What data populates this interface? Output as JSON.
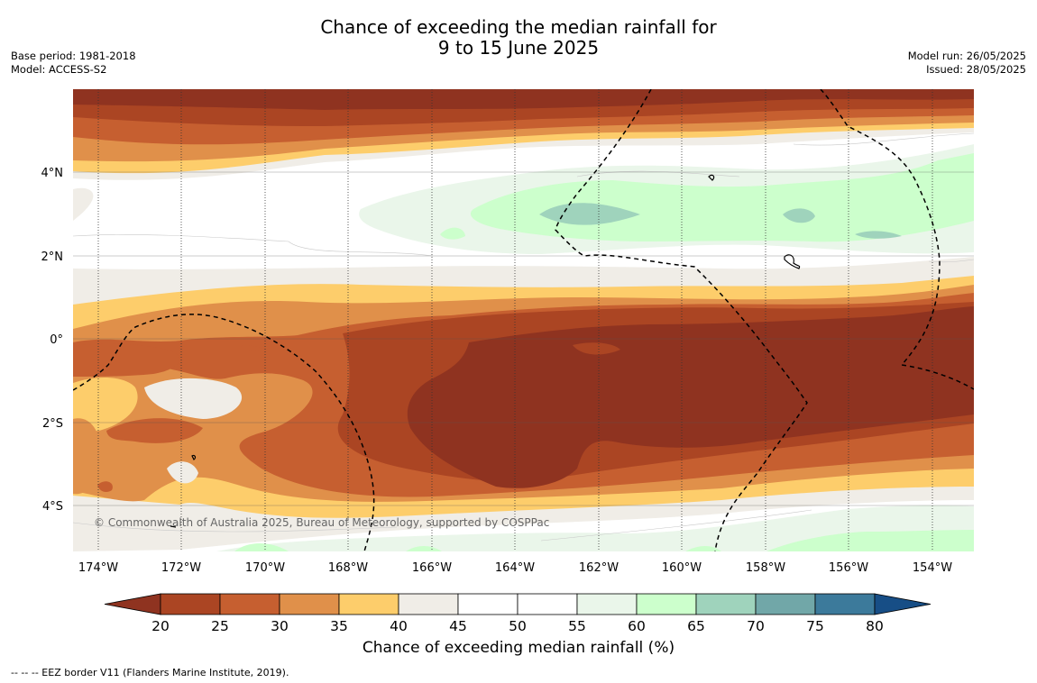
{
  "title": {
    "line1": "Chance of exceeding the median rainfall for",
    "line2": "9 to 15 June 2025"
  },
  "meta_left": {
    "base_period": "Base period: 1981-2018",
    "model": "Model: ACCESS-S2"
  },
  "meta_right": {
    "model_run": "Model run: 26/05/2025",
    "issued": "Issued: 28/05/2025"
  },
  "map": {
    "lat_ticks": [
      "4°N",
      "2°N",
      "0°",
      "2°S",
      "4°S"
    ],
    "lon_ticks": [
      "174°W",
      "172°W",
      "170°W",
      "168°W",
      "166°W",
      "164°W",
      "162°W",
      "160°W",
      "158°W",
      "156°W",
      "154°W"
    ],
    "copyright": "© Commonwealth of Australia 2025, Bureau of Meteorology, supported by COSPPac"
  },
  "colorbar": {
    "ticks": [
      "20",
      "25",
      "30",
      "35",
      "40",
      "45",
      "50",
      "55",
      "60",
      "65",
      "70",
      "75",
      "80"
    ],
    "colors": [
      "#8f3320",
      "#ab4523",
      "#c65f30",
      "#e0904a",
      "#fdcd6b",
      "#f0ede7",
      "#ffffff",
      "#ffffff",
      "#eaf6ea",
      "#ccffcc",
      "#9fd3bc",
      "#71a7a8",
      "#3c7a9b",
      "#174e86"
    ],
    "title": "Chance of exceeding median rainfall (%)"
  },
  "footer": "--  --  -- EEZ border V11 (Flanders Marine Institute, 2019)."
}
